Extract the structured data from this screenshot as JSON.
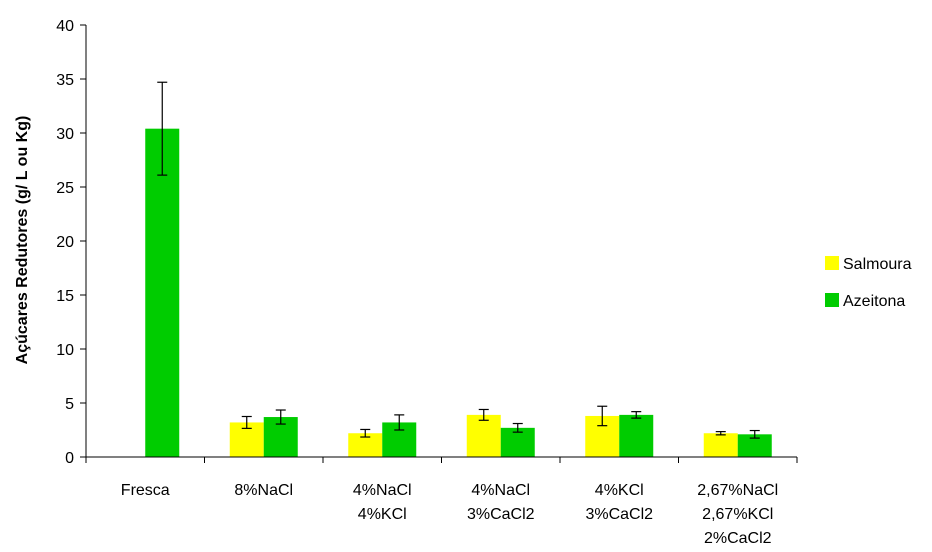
{
  "chart_data": {
    "type": "bar",
    "title": "",
    "xlabel": "",
    "ylabel": "Açúcares Redutores (g/ L ou Kg)",
    "ylim": [
      0,
      40
    ],
    "yticks": [
      0,
      5,
      10,
      15,
      20,
      25,
      30,
      35,
      40
    ],
    "categories": [
      [
        "Fresca"
      ],
      [
        "8%NaCl"
      ],
      [
        "4%NaCl",
        "4%KCl"
      ],
      [
        "4%NaCl",
        "3%CaCl2"
      ],
      [
        "4%KCl",
        "3%CaCl2"
      ],
      [
        "2,67%NaCl",
        "2,67%KCl",
        "2%CaCl2"
      ]
    ],
    "series": [
      {
        "name": "Salmoura",
        "color": "#ffff00",
        "values": [
          0,
          3.2,
          2.2,
          3.9,
          3.8,
          2.2
        ],
        "errors": [
          0,
          0.55,
          0.35,
          0.5,
          0.9,
          0.15
        ]
      },
      {
        "name": "Azeitona",
        "color": "#00cc00",
        "values": [
          30.4,
          3.7,
          3.2,
          2.7,
          3.9,
          2.1
        ],
        "errors": [
          4.3,
          0.65,
          0.7,
          0.4,
          0.3,
          0.35
        ]
      }
    ],
    "legend_position": "right",
    "grid": false
  }
}
